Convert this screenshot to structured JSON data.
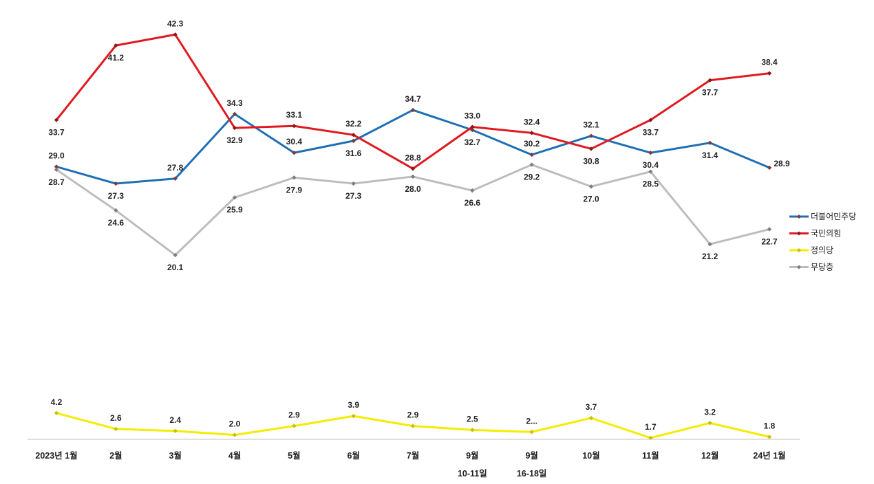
{
  "chart_data": {
    "type": "line",
    "title": "",
    "xlabel": "",
    "ylabel": "",
    "grid": false,
    "legend_position": "right",
    "categories": [
      [
        "2023년 1월"
      ],
      [
        "2월"
      ],
      [
        "3월"
      ],
      [
        "4월"
      ],
      [
        "5월"
      ],
      [
        "6월"
      ],
      [
        "7월"
      ],
      [
        "9월",
        "10-11일"
      ],
      [
        "9월",
        "16-18일"
      ],
      [
        "10월"
      ],
      [
        "11월"
      ],
      [
        "12월"
      ],
      [
        "24년 1월"
      ]
    ],
    "series": [
      {
        "name": "더불어민주당",
        "color": "#1f6fb5",
        "marker_color": "#7a3b3b",
        "values": [
          29.0,
          27.3,
          27.8,
          34.3,
          30.4,
          31.6,
          34.7,
          32.7,
          30.2,
          32.1,
          30.4,
          31.4,
          28.9
        ],
        "labels": [
          "29.0",
          "27.3",
          "27.8",
          "34.3",
          "30.4",
          "31.6",
          "34.7",
          "32.7",
          "30.2",
          "32.1",
          "30.4",
          "31.4",
          "28.9"
        ]
      },
      {
        "name": "국민의힘",
        "color": "#e0191f",
        "marker_color": "#8b1a1a",
        "values": [
          33.7,
          41.2,
          42.3,
          32.9,
          33.1,
          32.2,
          28.8,
          33.0,
          32.4,
          30.8,
          33.7,
          37.7,
          38.4
        ],
        "labels": [
          "33.7",
          "41.2",
          "42.3",
          "32.9",
          "33.1",
          "32.2",
          "28.8",
          "33.0",
          "32.4",
          "30.8",
          "33.7",
          "37.7",
          "38.4"
        ]
      },
      {
        "name": "정의당",
        "color": "#f5ec00",
        "marker_color": "#c8c000",
        "values": [
          4.2,
          2.6,
          2.4,
          2.0,
          2.9,
          3.9,
          2.9,
          2.5,
          2.3,
          3.7,
          1.7,
          3.2,
          1.8
        ],
        "labels": [
          "4.2",
          "2.6",
          "2.4",
          "2.0",
          "2.9",
          "3.9",
          "2.9",
          "2.5",
          "2...",
          "3.7",
          "1.7",
          "3.2",
          "1.8"
        ]
      },
      {
        "name": "무당층",
        "color": "#bdbdbd",
        "marker_color": "#7f7f7f",
        "values": [
          28.7,
          24.6,
          20.1,
          25.9,
          27.9,
          27.3,
          28.0,
          26.6,
          29.2,
          27.0,
          28.5,
          21.2,
          22.7
        ],
        "labels": [
          "28.7",
          "24.6",
          "20.1",
          "25.9",
          "27.9",
          "27.3",
          "28.0",
          "26.6",
          "29.2",
          "27.0",
          "28.5",
          "21.2",
          "22.7"
        ]
      }
    ],
    "ylim": [
      0,
      46
    ]
  }
}
